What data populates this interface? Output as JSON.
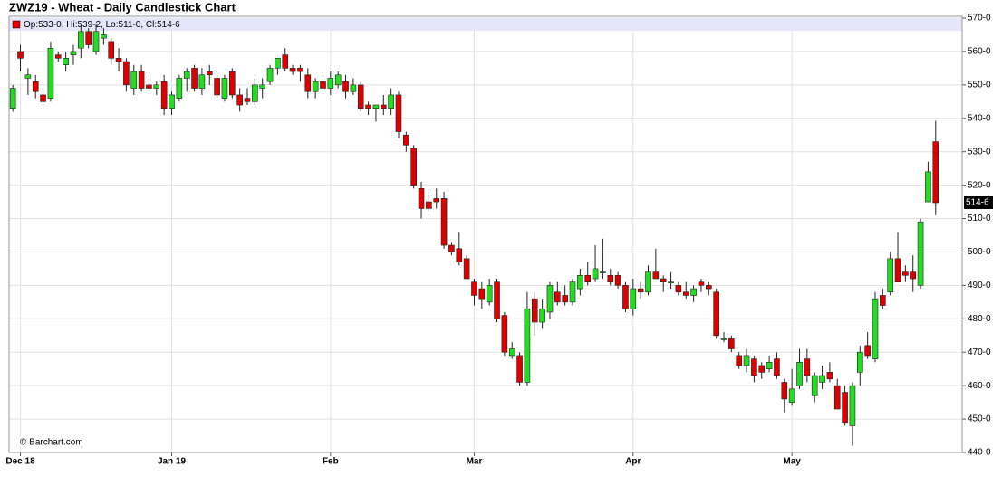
{
  "chart_data": {
    "type": "candlestick",
    "title": "ZWZ19 - Wheat - Daily Candlestick Chart",
    "legend_text": "Op:533-0, Hi:539-2, Lo:511-0, Cl:514-6",
    "watermark": "© Barchart.com",
    "up_color": "#22dd22",
    "down_color": "#dd0000",
    "legend_band_color": "#e6e6fa",
    "grid": true,
    "ylim": [
      440,
      570
    ],
    "yticks": [
      {
        "value": 440,
        "label": "440-0"
      },
      {
        "value": 450,
        "label": "450-0"
      },
      {
        "value": 460,
        "label": "460-0"
      },
      {
        "value": 470,
        "label": "470-0"
      },
      {
        "value": 480,
        "label": "480-0"
      },
      {
        "value": 490,
        "label": "490-0"
      },
      {
        "value": 500,
        "label": "500-0"
      },
      {
        "value": 510,
        "label": "510-0"
      },
      {
        "value": 520,
        "label": "520-0"
      },
      {
        "value": 530,
        "label": "530-0"
      },
      {
        "value": 540,
        "label": "540-0"
      },
      {
        "value": 550,
        "label": "550-0"
      },
      {
        "value": 560,
        "label": "560-0"
      },
      {
        "value": 570,
        "label": "570-0"
      }
    ],
    "xlim": [
      -0.5,
      125.5
    ],
    "xticks": [
      {
        "value": 1,
        "label": "Dec 18"
      },
      {
        "value": 21,
        "label": "Jan 19"
      },
      {
        "value": 42,
        "label": "Feb"
      },
      {
        "value": 61,
        "label": "Mar"
      },
      {
        "value": 82,
        "label": "Apr"
      },
      {
        "value": 103,
        "label": "May"
      }
    ],
    "last_price": {
      "value": 514.75,
      "label": "514-6"
    },
    "open": [
      543,
      560,
      552,
      551,
      547,
      546,
      559,
      556,
      559,
      561,
      566,
      560,
      564,
      563,
      558,
      557,
      549,
      554,
      550,
      549,
      551,
      543,
      546,
      552,
      555,
      549,
      554,
      552,
      546,
      554,
      547,
      546,
      545,
      549,
      551,
      555,
      559,
      555,
      555,
      553,
      548,
      551,
      549,
      550,
      551,
      548,
      550,
      544,
      543,
      544,
      543,
      547,
      535,
      531,
      519,
      515,
      516,
      516,
      502,
      501,
      498,
      491,
      489,
      485,
      491,
      481,
      469,
      469,
      461,
      486,
      479,
      482,
      488,
      487,
      485,
      489,
      493,
      492,
      494,
      493,
      493,
      490,
      483,
      489,
      488,
      494,
      492,
      491,
      490,
      488,
      487,
      491,
      490,
      488,
      474,
      474,
      469,
      466,
      468,
      466,
      465,
      468,
      461,
      455,
      460,
      468,
      457,
      461,
      464,
      460,
      458,
      448,
      464,
      472,
      468,
      487,
      488,
      498,
      494,
      494,
      490,
      515,
      533
    ],
    "high": [
      550,
      562,
      555,
      553,
      549,
      563,
      560,
      560,
      562,
      568,
      567,
      568,
      567,
      564,
      561,
      558,
      556,
      556,
      552,
      551,
      553,
      548,
      553,
      555,
      556,
      555,
      556,
      554,
      553,
      555,
      549,
      549,
      552,
      552,
      556,
      558,
      561,
      556,
      556,
      555,
      552,
      553,
      554,
      554,
      553,
      552,
      551,
      545,
      544,
      547,
      549,
      548,
      536,
      532,
      521,
      518,
      519,
      518,
      503,
      506,
      499,
      492,
      491,
      492,
      492,
      482,
      473,
      470,
      488,
      488,
      486,
      491,
      491,
      490,
      492,
      495,
      497,
      502,
      504,
      495,
      494,
      491,
      492,
      491,
      496,
      501,
      493,
      494,
      491,
      491,
      490,
      492,
      491,
      489,
      476,
      475,
      470,
      471,
      469,
      467,
      469,
      470,
      462,
      465,
      471,
      471,
      464,
      466,
      467,
      462,
      460,
      461,
      472,
      476,
      488,
      489,
      500,
      506,
      496,
      499,
      510,
      527,
      539.25
    ],
    "low": [
      542,
      554,
      547,
      546,
      543,
      545,
      557,
      554,
      556,
      558,
      561,
      559,
      562,
      556,
      554,
      548,
      547,
      548,
      548,
      547,
      541,
      541,
      545,
      548,
      548,
      547,
      550,
      546,
      545,
      546,
      542,
      544,
      544,
      546,
      550,
      553,
      554,
      553,
      551,
      546,
      546,
      548,
      547,
      549,
      546,
      547,
      542,
      541,
      539,
      541,
      541,
      534,
      530,
      519,
      510,
      512,
      513,
      501,
      499,
      496,
      492,
      484,
      483,
      484,
      479,
      469,
      468,
      460,
      460,
      475,
      477,
      480,
      484,
      484,
      484,
      487,
      490,
      491,
      492,
      490,
      489,
      482,
      481,
      486,
      487,
      492,
      488,
      489,
      487,
      486,
      485,
      488,
      487,
      474,
      473,
      470,
      465,
      464,
      461,
      462,
      464,
      462,
      452,
      454,
      459,
      461,
      455,
      459,
      461,
      453,
      448,
      442,
      460,
      468,
      467,
      483,
      487,
      491,
      491,
      488,
      489,
      515,
      511
    ],
    "close": [
      549,
      558,
      553,
      548,
      545,
      561,
      558,
      558,
      560,
      566,
      562,
      566,
      565,
      558,
      557,
      550,
      554,
      549,
      549,
      550,
      543,
      547,
      552,
      554,
      549,
      553,
      553,
      547,
      552,
      547,
      544,
      545,
      550,
      550,
      555,
      558,
      555,
      554,
      554,
      548,
      551,
      549,
      552,
      553,
      548,
      550,
      543,
      543,
      544,
      543,
      547,
      536,
      532,
      520,
      513,
      513,
      515,
      502,
      500,
      497,
      492,
      487,
      486,
      490,
      480,
      470,
      471,
      461,
      483,
      479,
      483,
      490,
      485,
      485,
      491,
      493,
      491,
      495,
      494,
      491,
      490,
      483,
      489,
      488,
      494,
      492,
      491,
      491,
      488,
      487,
      489,
      490,
      489,
      475,
      474,
      471,
      466,
      469,
      463,
      464,
      467,
      463,
      456,
      459,
      467,
      463,
      463,
      463,
      462,
      453,
      449,
      460,
      470,
      469,
      486,
      484,
      498,
      491,
      493,
      492,
      509,
      524,
      514.75
    ]
  }
}
